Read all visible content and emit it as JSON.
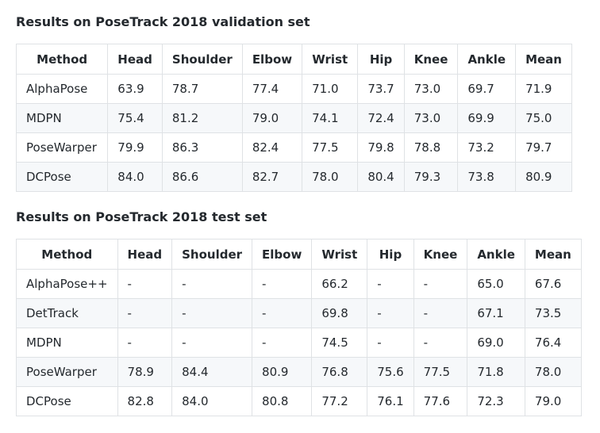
{
  "validation": {
    "title": "Results on PoseTrack 2018 validation set",
    "headers": [
      "Method",
      "Head",
      "Shoulder",
      "Elbow",
      "Wrist",
      "Hip",
      "Knee",
      "Ankle",
      "Mean"
    ],
    "rows": [
      [
        "AlphaPose",
        "63.9",
        "78.7",
        "77.4",
        "71.0",
        "73.7",
        "73.0",
        "69.7",
        "71.9"
      ],
      [
        "MDPN",
        "75.4",
        "81.2",
        "79.0",
        "74.1",
        "72.4",
        "73.0",
        "69.9",
        "75.0"
      ],
      [
        "PoseWarper",
        "79.9",
        "86.3",
        "82.4",
        "77.5",
        "79.8",
        "78.8",
        "73.2",
        "79.7"
      ],
      [
        "DCPose",
        "84.0",
        "86.6",
        "82.7",
        "78.0",
        "80.4",
        "79.3",
        "73.8",
        "80.9"
      ]
    ]
  },
  "test": {
    "title": "Results on PoseTrack 2018 test set",
    "headers": [
      "Method",
      "Head",
      "Shoulder",
      "Elbow",
      "Wrist",
      "Hip",
      "Knee",
      "Ankle",
      "Mean"
    ],
    "rows": [
      [
        "AlphaPose++",
        "-",
        "-",
        "-",
        "66.2",
        "-",
        "-",
        "65.0",
        "67.6"
      ],
      [
        "DetTrack",
        "-",
        "-",
        "-",
        "69.8",
        "-",
        "-",
        "67.1",
        "73.5"
      ],
      [
        "MDPN",
        "-",
        "-",
        "-",
        "74.5",
        "-",
        "-",
        "69.0",
        "76.4"
      ],
      [
        "PoseWarper",
        "78.9",
        "84.4",
        "80.9",
        "76.8",
        "75.6",
        "77.5",
        "71.8",
        "78.0"
      ],
      [
        "DCPose",
        "82.8",
        "84.0",
        "80.8",
        "77.2",
        "76.1",
        "77.6",
        "72.3",
        "79.0"
      ]
    ]
  }
}
